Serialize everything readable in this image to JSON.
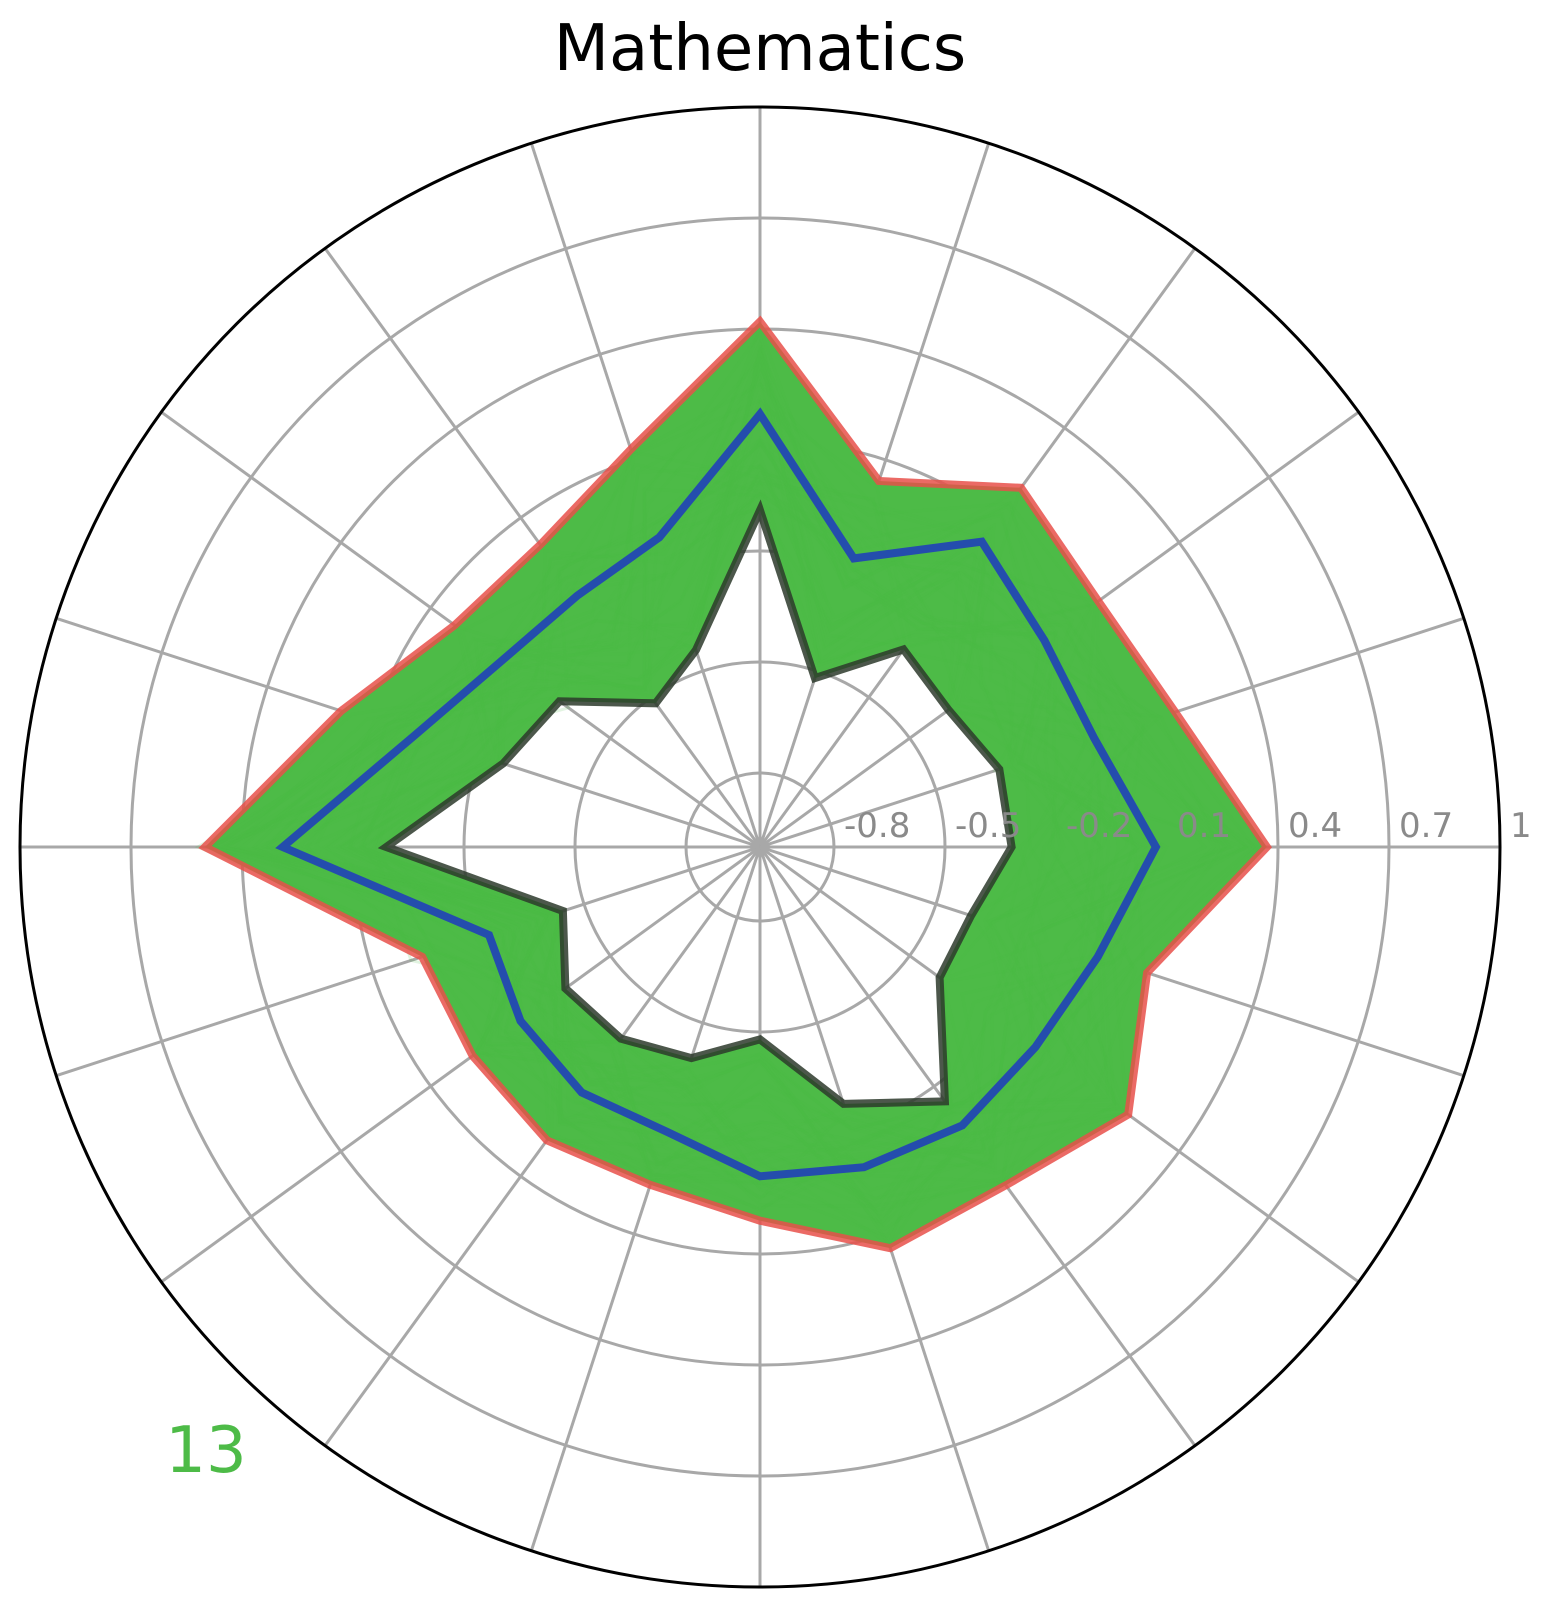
{
  "chart_data": {
    "type": "radar",
    "title": "Mathematics",
    "corner_label": "13",
    "rlim": [
      -1,
      1
    ],
    "radial_ticks": [
      "-0.8",
      "-0.5",
      "-0.2",
      "0.1",
      "0.4",
      "0.7",
      "1"
    ],
    "radial_tick_values": [
      -0.8,
      -0.5,
      -0.2,
      0.1,
      0.4,
      0.7,
      1.0
    ],
    "n_axes": 20,
    "grid": true,
    "colors": {
      "band": "#4dbb47",
      "max": "#e8504a",
      "mean": "#2247b3",
      "min": "#2d3a2b",
      "grid": "#a8a8a8",
      "tick": "#8a8a8a",
      "corner": "#4dbb47"
    },
    "series": [
      {
        "role": "max",
        "values": [
          0.37,
          0.18,
          0.13,
          0.2,
          0.04,
          0.42,
          0.13,
          0.01,
          0.02,
          0.19,
          0.5,
          -0.04,
          -0.04,
          -0.02,
          -0.04,
          0.01,
          0.14,
          0.13,
          0.23,
          0.1
        ]
      },
      {
        "role": "mean",
        "values": [
          0.07,
          -0.05,
          -0.05,
          0.02,
          -0.18,
          0.17,
          -0.12,
          -0.16,
          -0.14,
          -0.02,
          0.29,
          -0.23,
          -0.2,
          -0.18,
          -0.19,
          -0.11,
          -0.09,
          -0.07,
          -0.08,
          -0.04
        ]
      },
      {
        "role": "min",
        "values": [
          -0.32,
          -0.32,
          -0.37,
          -0.34,
          -0.52,
          -0.09,
          -0.44,
          -0.52,
          -0.33,
          -0.27,
          0.01,
          -0.44,
          -0.35,
          -0.36,
          -0.4,
          -0.48,
          -0.27,
          -0.15,
          -0.4,
          -0.4
        ]
      }
    ]
  }
}
